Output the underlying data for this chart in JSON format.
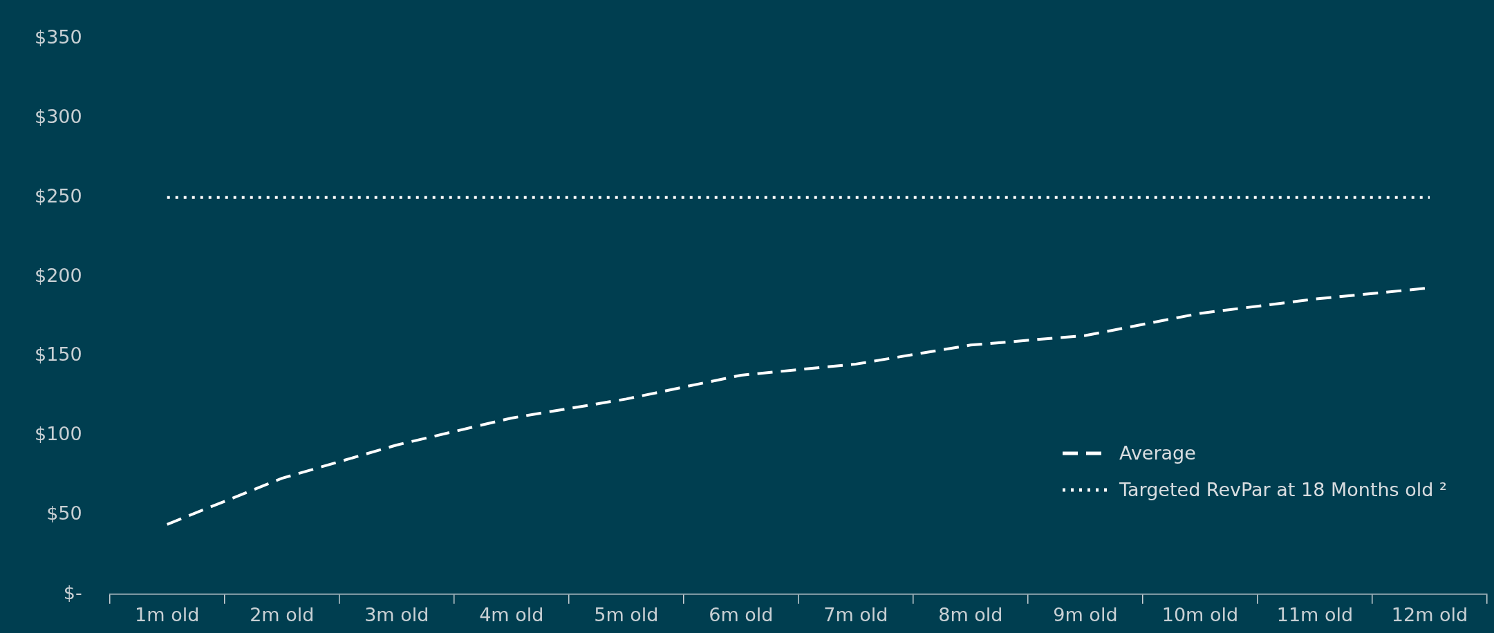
{
  "chart_data": {
    "type": "line",
    "categories": [
      "1m old",
      "2m old",
      "3m old",
      "4m old",
      "5m old",
      "6m old",
      "7m old",
      "8m old",
      "9m old",
      "10m old",
      "11m old",
      "12m old"
    ],
    "series": [
      {
        "name": "Average",
        "color": "#ffffff",
        "line_style": "dashed",
        "values": [
          44,
          73,
          94,
          111,
          123,
          138,
          145,
          157,
          163,
          177,
          186,
          193
        ]
      },
      {
        "name": "Targeted RevPar at 18 Months old ²",
        "color": "#ffffff",
        "line_style": "dotted",
        "values": [
          250,
          250,
          250,
          250,
          250,
          250,
          250,
          250,
          250,
          250,
          250,
          250
        ]
      }
    ],
    "ylim": [
      0,
      350
    ],
    "yticks": [
      {
        "value": 0,
        "label": "$-"
      },
      {
        "value": 50,
        "label": "$50"
      },
      {
        "value": 100,
        "label": "$100"
      },
      {
        "value": 150,
        "label": "$150"
      },
      {
        "value": 200,
        "label": "$200"
      },
      {
        "value": 250,
        "label": "$250"
      },
      {
        "value": 300,
        "label": "$300"
      },
      {
        "value": 350,
        "label": "$350"
      }
    ],
    "grid": false,
    "legend": "bottom right",
    "marker": "none"
  }
}
